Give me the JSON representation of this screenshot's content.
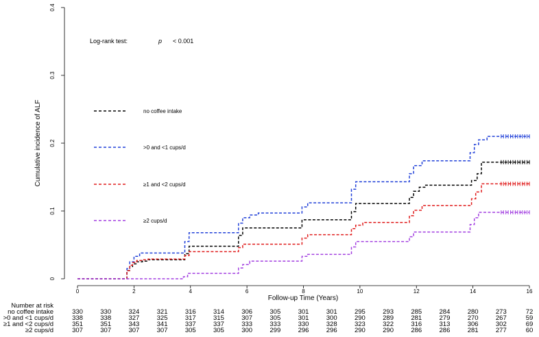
{
  "chart_data": {
    "type": "line",
    "subtype": "step",
    "xlabel": "Follow-up Time (Years)",
    "ylabel": "Cumulative incidence of ALF",
    "xlim": [
      0,
      16
    ],
    "ylim": [
      0,
      0.4
    ],
    "x_ticks": [
      "0",
      "2",
      "4",
      "6",
      "8",
      "10",
      "12",
      "14",
      "16"
    ],
    "x_tick_values": [
      0,
      2,
      4,
      6,
      8,
      10,
      12,
      14,
      16
    ],
    "y_ticks": [
      "0",
      "0.1",
      "0.2",
      "0.3",
      "0.4"
    ],
    "y_tick_values": [
      0,
      0.1,
      0.2,
      0.3,
      0.4
    ],
    "annotation": {
      "prefix": "Log-rank test:",
      "p_symbol": "p",
      "p_value": "< 0.001"
    },
    "series": [
      {
        "name": "no coffee intake",
        "color": "#000000",
        "x": [
          0,
          1.6,
          1.75,
          1.85,
          1.95,
          2.1,
          2.3,
          2.5,
          3.8,
          3.95,
          5.55,
          5.7,
          5.85,
          7.8,
          7.95,
          9.55,
          9.7,
          9.85,
          11.6,
          11.75,
          11.9,
          12.1,
          12.3,
          13.8,
          13.95,
          14.15,
          14.3,
          15.0,
          16.0
        ],
        "y": [
          0,
          0,
          0.012,
          0.018,
          0.022,
          0.025,
          0.026,
          0.028,
          0.037,
          0.048,
          0.048,
          0.064,
          0.075,
          0.075,
          0.087,
          0.087,
          0.099,
          0.111,
          0.111,
          0.12,
          0.129,
          0.135,
          0.138,
          0.138,
          0.145,
          0.155,
          0.172,
          0.172,
          0.172
        ],
        "censor_start": 15.0,
        "censor_end": 16.0
      },
      {
        "name": ">0 and <1 cups/d",
        "color": "#1f3fd8",
        "x": [
          0,
          1.6,
          1.75,
          1.85,
          2.0,
          2.2,
          3.8,
          3.95,
          5.55,
          5.7,
          5.85,
          6.1,
          6.4,
          7.8,
          7.95,
          8.15,
          9.55,
          9.7,
          9.85,
          11.6,
          11.75,
          11.9,
          12.2,
          13.8,
          13.9,
          14.05,
          14.2,
          14.5,
          15.0,
          16.0
        ],
        "y": [
          0,
          0,
          0.015,
          0.025,
          0.033,
          0.038,
          0.055,
          0.068,
          0.068,
          0.082,
          0.09,
          0.094,
          0.097,
          0.097,
          0.106,
          0.112,
          0.112,
          0.132,
          0.143,
          0.143,
          0.155,
          0.167,
          0.174,
          0.174,
          0.186,
          0.198,
          0.205,
          0.21,
          0.21,
          0.21
        ],
        "censor_start": 15.0,
        "censor_end": 16.0
      },
      {
        "name": "≥1 and <2 cups/d",
        "color": "#e01b1b",
        "x": [
          0,
          1.6,
          1.75,
          1.85,
          1.95,
          2.1,
          2.3,
          2.5,
          3.8,
          3.95,
          5.55,
          5.7,
          5.85,
          7.8,
          7.95,
          8.15,
          9.55,
          9.7,
          9.85,
          10.1,
          11.6,
          11.75,
          11.9,
          12.2,
          13.8,
          13.95,
          14.1,
          14.3,
          15.0,
          16.0
        ],
        "y": [
          0,
          0,
          0.012,
          0.02,
          0.024,
          0.027,
          0.028,
          0.029,
          0.034,
          0.04,
          0.04,
          0.046,
          0.051,
          0.051,
          0.06,
          0.065,
          0.065,
          0.074,
          0.079,
          0.083,
          0.083,
          0.093,
          0.101,
          0.108,
          0.108,
          0.118,
          0.128,
          0.14,
          0.14,
          0.14
        ],
        "censor_start": 15.0,
        "censor_end": 16.0
      },
      {
        "name": "≥2 cups/d",
        "color": "#a23fe0",
        "x": [
          0,
          3.6,
          3.75,
          3.9,
          5.55,
          5.7,
          5.85,
          6.1,
          7.8,
          7.95,
          8.15,
          9.55,
          9.7,
          9.85,
          11.6,
          11.75,
          11.9,
          13.8,
          13.9,
          14.05,
          14.2,
          15.0,
          16.0
        ],
        "y": [
          0,
          0,
          0.003,
          0.008,
          0.008,
          0.016,
          0.021,
          0.026,
          0.026,
          0.033,
          0.036,
          0.036,
          0.047,
          0.055,
          0.055,
          0.062,
          0.069,
          0.069,
          0.08,
          0.09,
          0.098,
          0.098,
          0.098
        ],
        "censor_start": 15.0,
        "censor_end": 16.0
      }
    ]
  },
  "risk_table": {
    "header": "Number at risk",
    "time_points": [
      0,
      1,
      2,
      3,
      4,
      5,
      6,
      7,
      8,
      9,
      10,
      11,
      12,
      13,
      14,
      15,
      16
    ],
    "rows": [
      {
        "label": "no coffee intake",
        "values": [
          "330",
          "330",
          "324",
          "321",
          "316",
          "314",
          "306",
          "305",
          "301",
          "301",
          "295",
          "293",
          "285",
          "284",
          "280",
          "273",
          "72"
        ]
      },
      {
        "label": ">0 and <1 cups/d",
        "values": [
          "338",
          "338",
          "327",
          "325",
          "317",
          "315",
          "307",
          "305",
          "301",
          "300",
          "290",
          "289",
          "281",
          "279",
          "270",
          "267",
          "59"
        ]
      },
      {
        "label": "≥1 and <2 cups/d",
        "values": [
          "351",
          "351",
          "343",
          "341",
          "337",
          "337",
          "333",
          "333",
          "330",
          "328",
          "323",
          "322",
          "316",
          "313",
          "306",
          "302",
          "69"
        ]
      },
      {
        "label": "≥2 cups/d",
        "values": [
          "307",
          "307",
          "307",
          "307",
          "305",
          "305",
          "300",
          "299",
          "296",
          "296",
          "290",
          "290",
          "286",
          "286",
          "281",
          "277",
          "60"
        ]
      }
    ]
  }
}
